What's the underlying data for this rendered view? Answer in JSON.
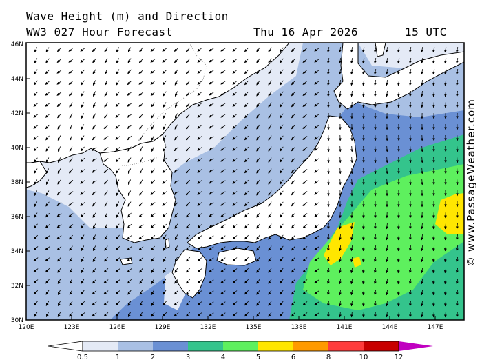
{
  "header": {
    "title": "Wave Height (m) and Direction",
    "subtitle": "WW3 027 Hour Forecast",
    "date": "Thu 16 Apr 2026",
    "time": "15 UTC"
  },
  "watermark": "© www.PassageWeather.com",
  "axes": {
    "lat_ticks": [
      "30N",
      "32N",
      "34N",
      "36N",
      "38N",
      "40N",
      "42N",
      "44N",
      "46N"
    ],
    "lon_ticks": [
      "120E",
      "123E",
      "126E",
      "129E",
      "132E",
      "135E",
      "138E",
      "141E",
      "144E",
      "147E"
    ]
  },
  "legend": {
    "labels": [
      "0.5",
      "1",
      "2",
      "3",
      "4",
      "5",
      "6",
      "8",
      "10",
      "12"
    ],
    "colors": [
      "#e4eaf6",
      "#a9c0e4",
      "#6a90d4",
      "#34c48c",
      "#5ef05e",
      "#ffe600",
      "#ff9a00",
      "#ff3c3c",
      "#c80000",
      "#c000c0"
    ]
  },
  "colors": {
    "land": "#ffffff",
    "coast": "#000000",
    "border": "#777777"
  },
  "chart_data": {
    "type": "heatmap",
    "title": "Wave Height (m) and Direction",
    "lon_range": [
      120,
      149
    ],
    "lat_range": [
      30,
      46
    ],
    "units": "m",
    "levels": [
      0.5,
      1,
      2,
      3,
      4,
      5,
      6,
      8,
      10,
      12
    ],
    "max_region": {
      "lon": [
        147,
        149
      ],
      "lat": [
        35.5,
        37.5
      ],
      "band": "5-6"
    }
  }
}
